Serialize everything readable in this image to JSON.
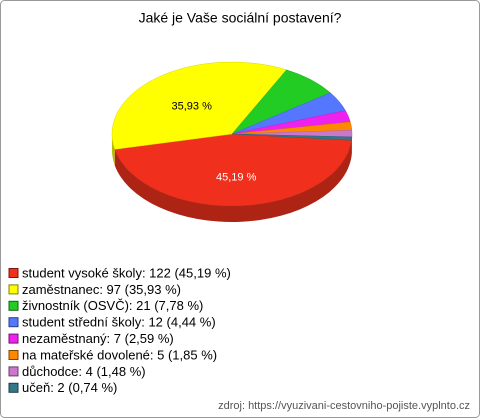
{
  "chart_data": {
    "type": "pie3d",
    "title": "Jaké je Vaše sociální postavení?",
    "categories": [
      "student vysoké školy",
      "zaměstnanec",
      "živnostník (OSVČ)",
      "student střední školy",
      "nezaměstnaný",
      "na mateřské dovolené",
      "důchodce",
      "učeň"
    ],
    "values": [
      45.19,
      35.93,
      7.78,
      4.44,
      2.59,
      1.85,
      1.48,
      0.74
    ],
    "value_labels": [
      "45,19 %",
      "35,93 %",
      null,
      null,
      null,
      null,
      null,
      null
    ],
    "legend_labels": [
      "student vysoké školy: 122 (45,19 %)",
      "zaměstnanec: 97 (35,93 %)",
      "živnostník (OSVČ): 21 (7,78 %)",
      "student střední školy: 12 (4,44 %)",
      "nezaměstnaný: 7 (2,59 %)",
      "na mateřské dovolené: 5 (1,85 %)",
      "důchodce: 4 (1,48 %)",
      "učeň: 2 (0,74 %)"
    ],
    "colors": [
      "#f0301c",
      "#ffff00",
      "#22cc22",
      "#5577ff",
      "#ee22ee",
      "#ff8800",
      "#cc77cc",
      "#337788"
    ],
    "source": "zdroj: https://vyuzivani-cestovniho-pojiste.vyplnto.cz"
  }
}
